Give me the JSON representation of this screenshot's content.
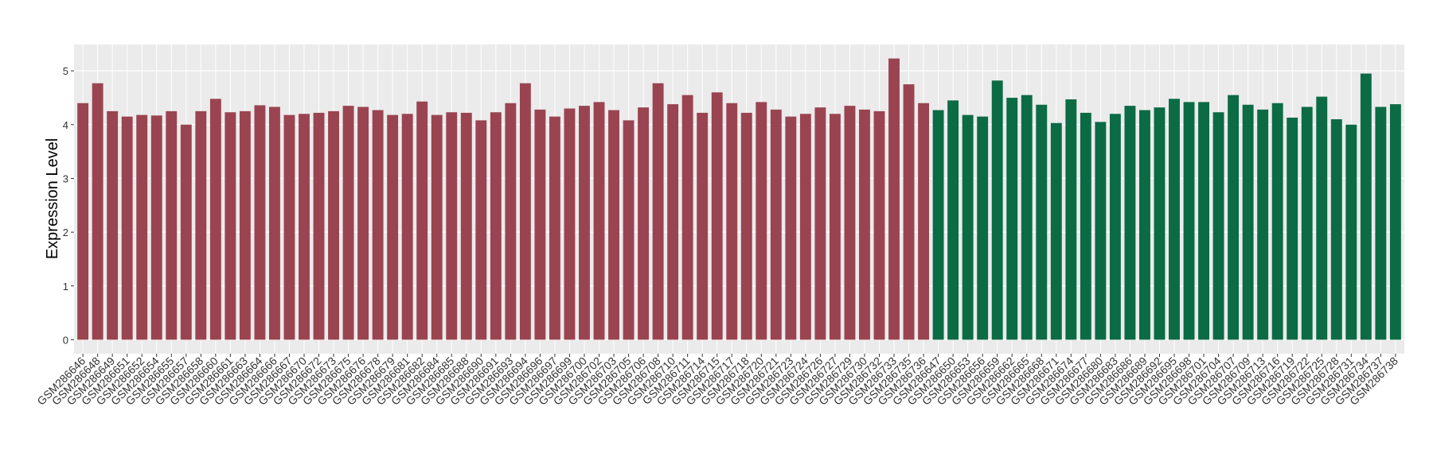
{
  "chart_data": {
    "type": "bar",
    "y_label": "Expression Level",
    "ylim": [
      -0.26,
      5.49
    ],
    "yticks": [
      0,
      1,
      2,
      3,
      4,
      5
    ],
    "grid": true,
    "series": [
      {
        "color": "#9b4451",
        "categories": [
          "GSM286646",
          "GSM286648",
          "GSM286649",
          "GSM286651",
          "GSM286652",
          "GSM286654",
          "GSM286655",
          "GSM286657",
          "GSM286658",
          "GSM286660",
          "GSM286661",
          "GSM286663",
          "GSM286664",
          "GSM286666",
          "GSM286667",
          "GSM286670",
          "GSM286672",
          "GSM286673",
          "GSM286675",
          "GSM286676",
          "GSM286678",
          "GSM286679",
          "GSM286681",
          "GSM286682",
          "GSM286684",
          "GSM286685",
          "GSM286688",
          "GSM286690",
          "GSM286691",
          "GSM286693",
          "GSM286694",
          "GSM286696",
          "GSM286697",
          "GSM286699",
          "GSM286700",
          "GSM286702",
          "GSM286703",
          "GSM286705",
          "GSM286706",
          "GSM286708",
          "GSM286710",
          "GSM286711",
          "GSM286714",
          "GSM286715",
          "GSM286717",
          "GSM286718",
          "GSM286720",
          "GSM286721",
          "GSM286723",
          "GSM286724",
          "GSM286726",
          "GSM286727",
          "GSM286729",
          "GSM286730",
          "GSM286732",
          "GSM286733",
          "GSM286735",
          "GSM286736"
        ],
        "values": [
          4.4,
          4.77,
          4.25,
          4.15,
          4.18,
          4.17,
          4.25,
          4.0,
          4.25,
          4.48,
          4.23,
          4.25,
          4.36,
          4.33,
          4.18,
          4.2,
          4.22,
          4.25,
          4.35,
          4.33,
          4.27,
          4.18,
          4.2,
          4.43,
          4.18,
          4.23,
          4.22,
          4.08,
          4.23,
          4.4,
          4.77,
          4.28,
          4.15,
          4.3,
          4.35,
          4.42,
          4.27,
          4.08,
          4.32,
          4.77,
          4.38,
          4.55,
          4.22,
          4.6,
          4.4,
          4.22,
          4.42,
          4.28,
          4.15,
          4.2,
          4.32,
          4.2,
          4.35,
          4.28,
          4.25,
          5.23,
          4.75,
          4.4
        ]
      },
      {
        "color": "#0b6b45",
        "categories": [
          "GSM286647",
          "GSM286650",
          "GSM286653",
          "GSM286656",
          "GSM286659",
          "GSM286662",
          "GSM286665",
          "GSM286668",
          "GSM286671",
          "GSM286674",
          "GSM286677",
          "GSM286680",
          "GSM286683",
          "GSM286686",
          "GSM286689",
          "GSM286692",
          "GSM286695",
          "GSM286698",
          "GSM286701",
          "GSM286704",
          "GSM286707",
          "GSM286709",
          "GSM286713",
          "GSM286716",
          "GSM286719",
          "GSM286722",
          "GSM286725",
          "GSM286728",
          "GSM286731",
          "GSM286734",
          "GSM286737",
          "GSM286738"
        ],
        "values": [
          4.27,
          4.45,
          4.18,
          4.15,
          4.82,
          4.5,
          4.55,
          4.37,
          4.03,
          4.47,
          4.22,
          4.05,
          4.2,
          4.35,
          4.27,
          4.32,
          4.48,
          4.42,
          4.42,
          4.23,
          4.55,
          4.37,
          4.28,
          4.4,
          4.13,
          4.33,
          4.52,
          4.1,
          4.0,
          4.95,
          4.33,
          4.38
        ]
      }
    ]
  }
}
